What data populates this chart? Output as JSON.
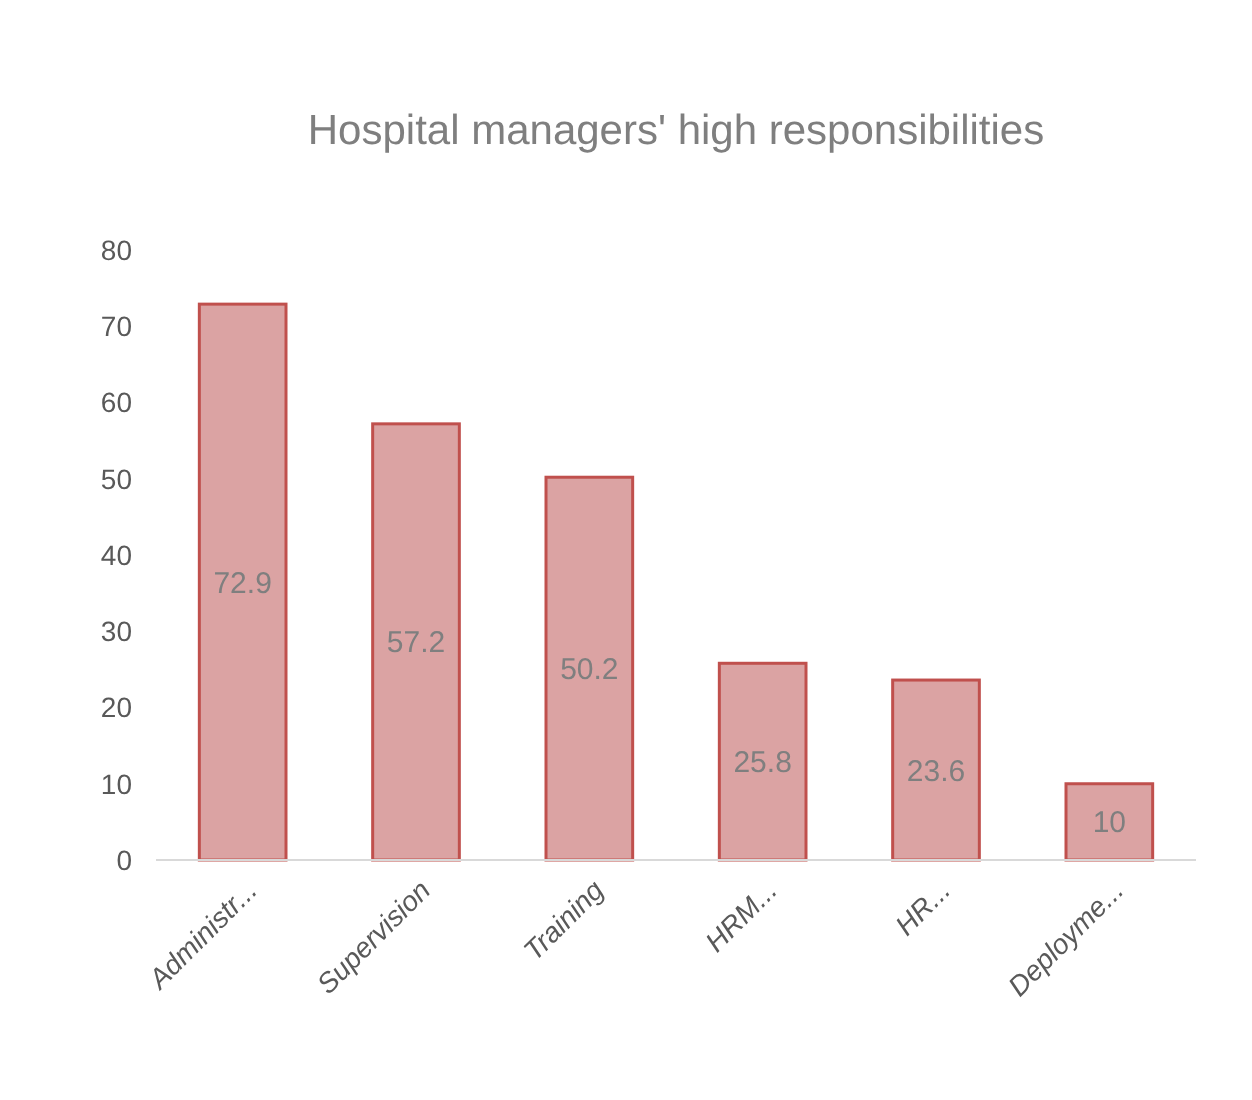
{
  "chart_data": {
    "type": "bar",
    "title": "Hospital managers' high responsibilities",
    "categories": [
      "Administr...",
      "Supervision",
      "Training",
      "HRM...",
      "HR...",
      "Deployme..."
    ],
    "values": [
      72.9,
      57.2,
      50.2,
      25.8,
      23.6,
      10
    ],
    "color": "#dba3a3",
    "ylim": [
      0,
      80
    ],
    "yticks": [
      0,
      10,
      20,
      30,
      40,
      50,
      60,
      70,
      80
    ],
    "data_labels": true
  }
}
